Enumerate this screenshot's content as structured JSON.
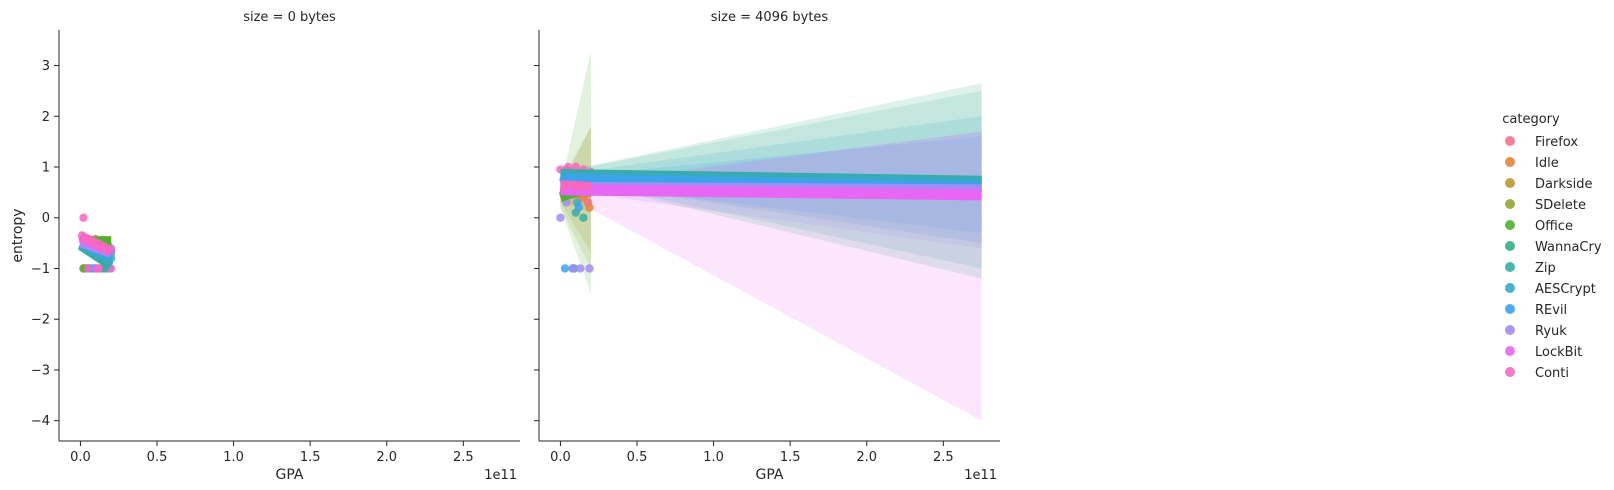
{
  "chart_data": {
    "type": "scatter",
    "facet_variable": "size",
    "panels": [
      {
        "title": "size = 0 bytes",
        "xlabel": "GPA",
        "ylabel": "entropy",
        "x_offset_label": "1e11",
        "xlim": [
          -0.14,
          2.87
        ],
        "ylim": [
          -4.4,
          3.7
        ],
        "xticks": [
          0.0,
          0.5,
          1.0,
          1.5,
          2.0,
          2.5
        ],
        "xtick_labels": [
          "0.0",
          "0.5",
          "1.0",
          "1.5",
          "2.0",
          "2.5"
        ],
        "yticks": [
          -4,
          -3,
          -2,
          -1,
          0,
          1,
          2,
          3
        ],
        "ytick_labels": [
          "−4",
          "−3",
          "−2",
          "−1",
          "0",
          "1",
          "2",
          "3"
        ],
        "series": [
          {
            "name": "Firefox",
            "points": [
              [
                0.02,
                -1.0
              ],
              [
                0.1,
                -1.0
              ],
              [
                0.17,
                -1.0
              ],
              [
                0.03,
                -0.45
              ],
              [
                0.15,
                -0.55
              ],
              [
                0.2,
                -0.65
              ]
            ],
            "fit": [
              [
                0.0,
                -0.47
              ],
              [
                0.2,
                -0.62
              ]
            ]
          },
          {
            "name": "Idle",
            "points": [
              [
                0.03,
                -1.0
              ],
              [
                0.12,
                -1.0
              ],
              [
                0.05,
                -0.5
              ],
              [
                0.18,
                -0.6
              ]
            ],
            "fit": [
              [
                0.0,
                -0.46
              ],
              [
                0.2,
                -0.58
              ]
            ]
          },
          {
            "name": "Darkside",
            "points": [
              [
                0.04,
                -1.0
              ],
              [
                0.14,
                -1.0
              ],
              [
                0.06,
                -0.47
              ]
            ],
            "fit": [
              [
                0.0,
                -0.45
              ],
              [
                0.2,
                -0.5
              ]
            ]
          },
          {
            "name": "SDelete",
            "points": [
              [
                0.05,
                -1.0
              ],
              [
                0.1,
                -0.42
              ]
            ],
            "fit": [
              [
                0.0,
                -0.44
              ],
              [
                0.2,
                -0.45
              ]
            ]
          },
          {
            "name": "Office",
            "points": [
              [
                0.02,
                -1.0
              ],
              [
                0.16,
                -1.0
              ],
              [
                0.08,
                -0.5
              ]
            ],
            "fit": [
              [
                0.0,
                -0.48
              ],
              [
                0.2,
                -0.46
              ]
            ]
          },
          {
            "name": "WannaCry",
            "points": [
              [
                0.06,
                -1.0
              ],
              [
                0.13,
                -1.0
              ],
              [
                0.04,
                -0.5
              ]
            ],
            "fit": [
              [
                0.0,
                -0.5
              ],
              [
                0.2,
                -0.65
              ]
            ]
          },
          {
            "name": "Zip",
            "points": [
              [
                0.05,
                -1.0
              ],
              [
                0.15,
                -1.0
              ]
            ],
            "fit": [
              [
                0.0,
                -0.55
              ],
              [
                0.2,
                -0.95
              ]
            ]
          },
          {
            "name": "AESCrypt",
            "points": [
              [
                0.08,
                -1.0
              ],
              [
                0.19,
                -1.0
              ],
              [
                0.2,
                -0.7
              ]
            ],
            "fit": [
              [
                0.0,
                -0.52
              ],
              [
                0.2,
                -0.85
              ]
            ]
          },
          {
            "name": "REvil",
            "points": [
              [
                0.09,
                -1.0
              ],
              [
                0.2,
                -0.8
              ]
            ],
            "fit": [
              [
                0.0,
                -0.5
              ],
              [
                0.2,
                -0.75
              ]
            ]
          },
          {
            "name": "Ryuk",
            "points": [
              [
                0.1,
                -1.0
              ],
              [
                0.2,
                -0.6
              ]
            ],
            "fit": [
              [
                0.0,
                -0.49
              ],
              [
                0.2,
                -0.7
              ]
            ]
          },
          {
            "name": "LockBit",
            "points": [
              [
                0.11,
                -1.0
              ],
              [
                0.18,
                -0.65
              ]
            ],
            "fit": [
              [
                0.0,
                -0.4
              ],
              [
                0.2,
                -0.68
              ]
            ]
          },
          {
            "name": "Conti",
            "points": [
              [
                0.02,
                0.0
              ],
              [
                0.01,
                -0.35
              ],
              [
                0.06,
                -0.45
              ],
              [
                0.1,
                -0.55
              ],
              [
                0.15,
                -0.6
              ],
              [
                0.2,
                -0.65
              ],
              [
                0.05,
                -1.0
              ],
              [
                0.12,
                -1.0
              ],
              [
                0.2,
                -1.0
              ]
            ],
            "fit": [
              [
                0.0,
                -0.35
              ],
              [
                0.2,
                -0.65
              ]
            ]
          }
        ]
      },
      {
        "title": "size = 4096 bytes",
        "xlabel": "GPA",
        "ylabel": "",
        "x_offset_label": "1e11",
        "xlim": [
          -0.14,
          2.87
        ],
        "ylim": [
          -4.4,
          3.7
        ],
        "xticks": [
          0.0,
          0.5,
          1.0,
          1.5,
          2.0,
          2.5
        ],
        "xtick_labels": [
          "0.0",
          "0.5",
          "1.0",
          "1.5",
          "2.0",
          "2.5"
        ],
        "yticks": [
          -4,
          -3,
          -2,
          -1,
          0,
          1,
          2,
          3
        ],
        "series": [
          {
            "name": "Firefox",
            "points": [
              [
                0.05,
                0.9
              ],
              [
                0.12,
                0.5
              ],
              [
                0.18,
                0.3
              ],
              [
                0.2,
                0.6
              ]
            ],
            "fit": [
              [
                0.0,
                0.45
              ],
              [
                0.2,
                0.55
              ]
            ],
            "band": [
              [
                0.0,
                0.3,
                0.6
              ],
              [
                0.2,
                0.2,
                0.9
              ]
            ]
          },
          {
            "name": "Idle",
            "points": [
              [
                0.06,
                0.8
              ],
              [
                0.15,
                0.4
              ],
              [
                0.19,
                0.2
              ]
            ],
            "fit": [
              [
                0.0,
                0.45
              ],
              [
                0.2,
                0.5
              ]
            ],
            "band": [
              [
                0.0,
                0.3,
                0.6
              ],
              [
                0.2,
                0.1,
                0.9
              ]
            ]
          },
          {
            "name": "Darkside",
            "points": [
              [
                0.07,
                0.7
              ],
              [
                0.16,
                0.6
              ]
            ],
            "fit": [
              [
                0.0,
                0.5
              ],
              [
                0.2,
                0.55
              ]
            ],
            "band": [
              [
                0.0,
                0.3,
                0.7
              ],
              [
                0.2,
                -0.7,
                1.8
              ]
            ]
          },
          {
            "name": "SDelete",
            "points": [
              [
                0.08,
                0.85
              ],
              [
                0.14,
                0.5
              ]
            ],
            "fit": [
              [
                0.0,
                0.42
              ],
              [
                0.2,
                0.6
              ]
            ],
            "band": [
              [
                0.0,
                0.2,
                0.6
              ],
              [
                0.2,
                -1.0,
                1.8
              ]
            ]
          },
          {
            "name": "Office",
            "points": [
              [
                0.03,
                0.6
              ],
              [
                0.17,
                0.55
              ]
            ],
            "fit": [
              [
                0.0,
                0.4
              ],
              [
                0.2,
                0.6
              ]
            ],
            "band": [
              [
                0.0,
                0.2,
                0.6
              ],
              [
                0.2,
                -1.5,
                3.3
              ]
            ]
          },
          {
            "name": "WannaCry",
            "points": [
              [
                0.04,
                0.95
              ],
              [
                0.09,
                -1.0
              ]
            ],
            "fit": [
              [
                0.0,
                0.85
              ],
              [
                2.75,
                0.7
              ]
            ],
            "band": [
              [
                0.0,
                0.8,
                0.9
              ],
              [
                2.75,
                -1.2,
                2.65
              ]
            ]
          },
          {
            "name": "Zip",
            "points": [
              [
                0.06,
                0.9
              ],
              [
                0.1,
                0.1
              ],
              [
                0.15,
                0.0
              ]
            ],
            "fit": [
              [
                0.0,
                0.85
              ],
              [
                2.75,
                0.72
              ]
            ],
            "band": [
              [
                0.0,
                0.8,
                0.9
              ],
              [
                2.75,
                -1.0,
                2.5
              ]
            ]
          },
          {
            "name": "AESCrypt",
            "points": [
              [
                0.02,
                0.75
              ],
              [
                0.11,
                0.3
              ]
            ],
            "fit": [
              [
                0.0,
                0.8
              ],
              [
                2.75,
                0.7
              ]
            ],
            "band": [
              [
                0.0,
                0.75,
                0.85
              ],
              [
                2.75,
                -0.5,
                2.0
              ]
            ]
          },
          {
            "name": "REvil",
            "points": [
              [
                0.03,
                -1.0
              ],
              [
                0.08,
                -1.0
              ],
              [
                0.12,
                0.2
              ]
            ],
            "fit": [
              [
                0.0,
                0.75
              ],
              [
                2.75,
                0.6
              ]
            ],
            "band": [
              [
                0.0,
                0.7,
                0.8
              ],
              [
                2.75,
                -0.3,
                1.6
              ]
            ]
          },
          {
            "name": "Ryuk",
            "points": [
              [
                0.0,
                0.0
              ],
              [
                0.04,
                0.3
              ],
              [
                0.08,
                -1.0
              ],
              [
                0.13,
                -1.0
              ],
              [
                0.19,
                -1.0
              ],
              [
                0.1,
                0.5
              ]
            ],
            "fit": [
              [
                0.0,
                0.6
              ],
              [
                2.75,
                0.55
              ]
            ],
            "band": [
              [
                0.0,
                0.55,
                0.65
              ],
              [
                2.75,
                -0.6,
                1.7
              ]
            ]
          },
          {
            "name": "LockBit",
            "points": [
              [
                0.05,
                0.6
              ],
              [
                0.14,
                0.8
              ]
            ],
            "fit": [
              [
                0.0,
                0.55
              ],
              [
                2.75,
                0.45
              ]
            ],
            "band": [
              [
                0.0,
                0.5,
                0.6
              ],
              [
                2.75,
                -4.0,
                1.7
              ]
            ]
          },
          {
            "name": "Conti",
            "points": [
              [
                0.0,
                0.95
              ],
              [
                0.05,
                1.0
              ],
              [
                0.1,
                1.0
              ],
              [
                0.15,
                0.95
              ],
              [
                0.2,
                0.9
              ],
              [
                0.03,
                0.7
              ],
              [
                0.08,
                0.5
              ],
              [
                0.12,
                0.6
              ],
              [
                0.17,
                0.7
              ]
            ],
            "fit": [
              [
                0.0,
                0.65
              ],
              [
                0.2,
                0.62
              ]
            ],
            "band": [
              [
                0.0,
                0.55,
                0.75
              ],
              [
                0.2,
                0.4,
                0.85
              ]
            ]
          }
        ]
      }
    ],
    "legend": {
      "title": "category",
      "placement": "right",
      "entries": [
        "Firefox",
        "Idle",
        "Darkside",
        "SDelete",
        "Office",
        "WannaCry",
        "Zip",
        "AESCrypt",
        "REvil",
        "Ryuk",
        "LockBit",
        "Conti"
      ]
    },
    "colors": {
      "Firefox": "#f77189",
      "Idle": "#e7823b",
      "Darkside": "#bb9832",
      "SDelete": "#97a431",
      "Office": "#50b131",
      "WannaCry": "#34af84",
      "Zip": "#36ada4",
      "AESCrypt": "#38aabf",
      "REvil": "#3ba3ec",
      "Ryuk": "#a48cf4",
      "LockBit": "#e866f4",
      "Conti": "#f668c2"
    },
    "grid": false
  }
}
